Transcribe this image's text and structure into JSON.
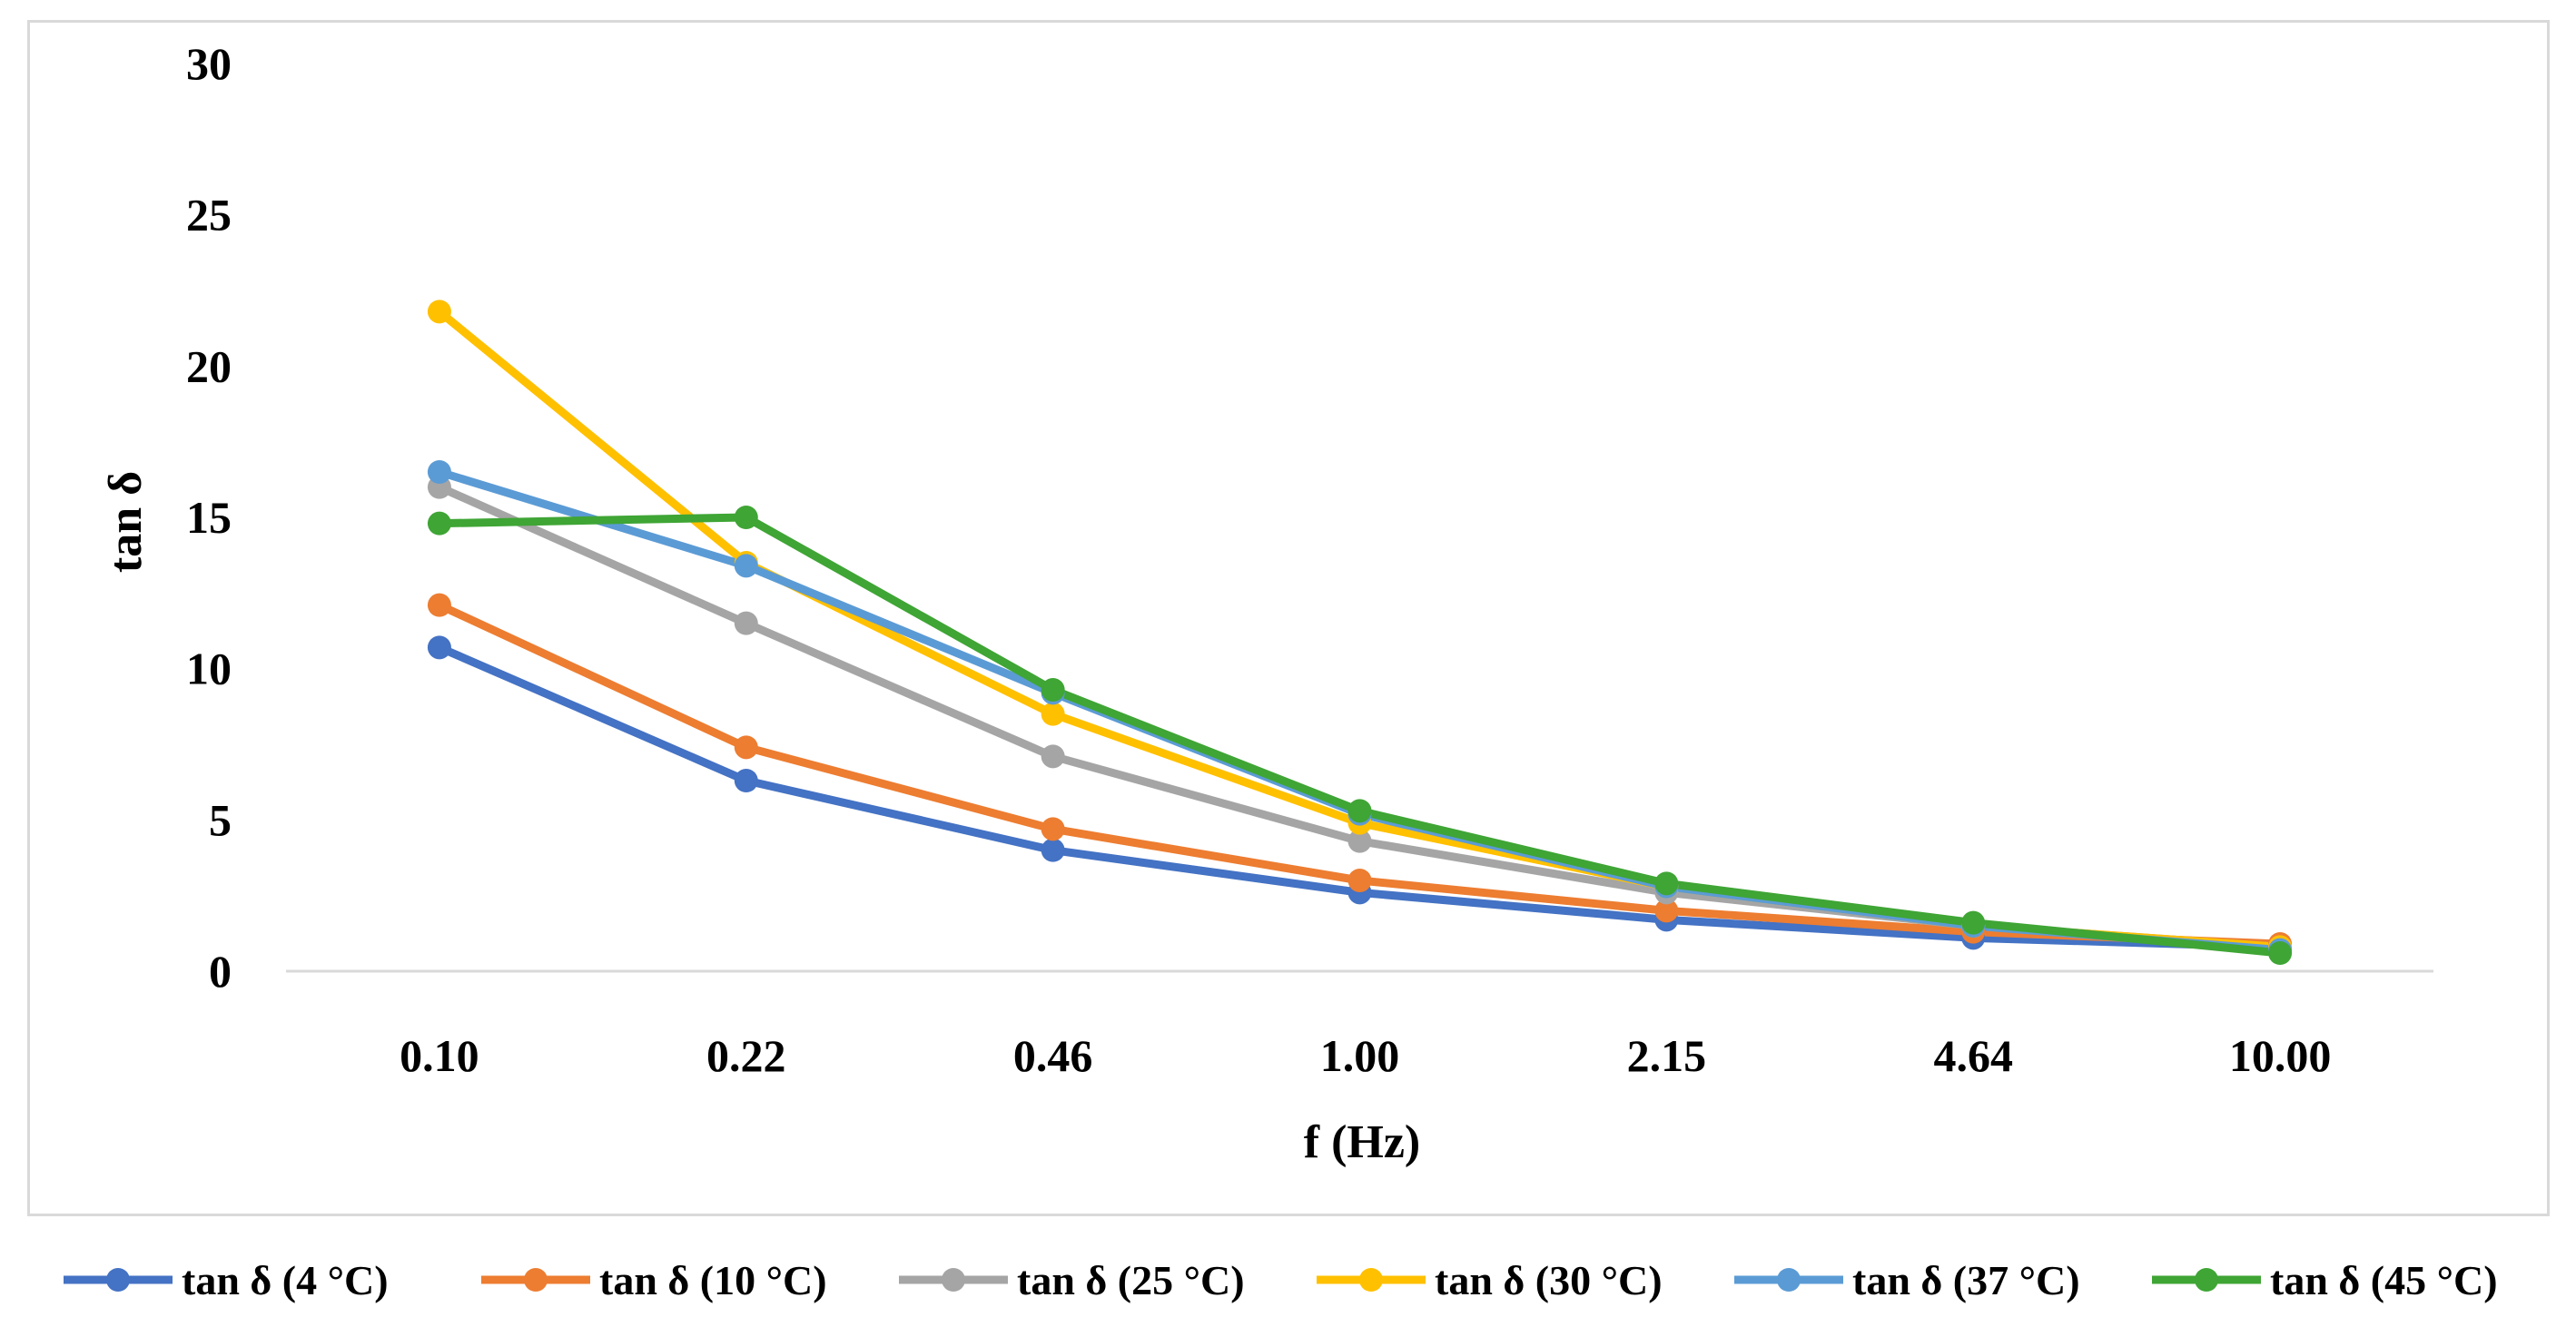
{
  "chart_data": {
    "type": "line",
    "categories": [
      "0.10",
      "0.22",
      "0.46",
      "1.00",
      "2.15",
      "4.64",
      "10.00"
    ],
    "xlabel": "f (Hz)",
    "ylabel": "tan δ",
    "ylim": [
      0,
      30
    ],
    "yticks": [
      "0",
      "5",
      "10",
      "15",
      "20",
      "25",
      "30"
    ],
    "grid": false,
    "legend_position": "bottom",
    "series": [
      {
        "name": "tan δ (4 °C)",
        "color": "#4472C4",
        "values": [
          10.7,
          6.3,
          4.0,
          2.6,
          1.7,
          1.1,
          0.8
        ]
      },
      {
        "name": "tan δ (10 °C)",
        "color": "#ED7D31",
        "values": [
          12.1,
          7.4,
          4.7,
          3.0,
          2.0,
          1.3,
          0.9
        ]
      },
      {
        "name": "tan δ (25 °C)",
        "color": "#A5A5A5",
        "values": [
          16.0,
          11.5,
          7.1,
          4.3,
          2.6,
          1.5,
          0.8
        ]
      },
      {
        "name": "tan δ (30 °C)",
        "color": "#FFC000",
        "values": [
          21.8,
          13.5,
          8.5,
          4.9,
          2.8,
          1.5,
          0.8
        ]
      },
      {
        "name": "tan δ (37 °C)",
        "color": "#5B9BD5",
        "values": [
          16.5,
          13.4,
          9.2,
          5.2,
          2.8,
          1.5,
          0.7
        ]
      },
      {
        "name": "tan δ (45 °C)",
        "color": "#3FA535",
        "values": [
          14.8,
          15.0,
          9.3,
          5.3,
          2.9,
          1.6,
          0.6
        ]
      }
    ]
  }
}
